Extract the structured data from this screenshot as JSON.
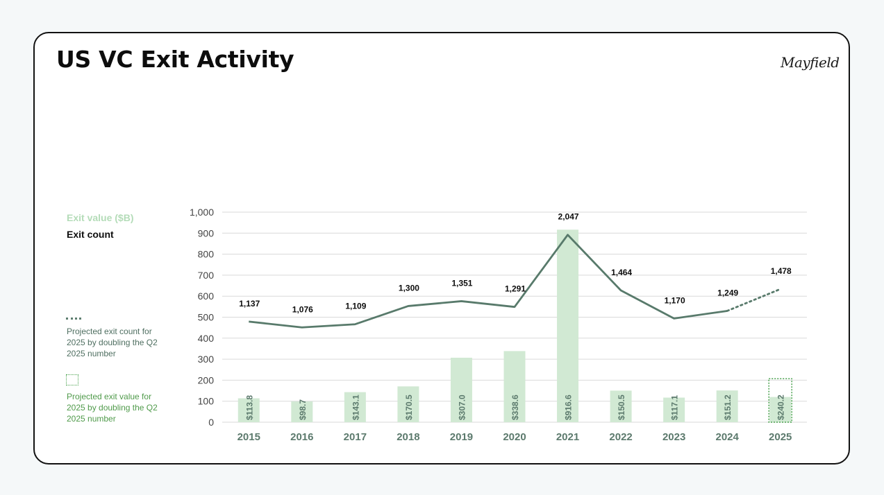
{
  "page": {
    "title": "US VC Exit Activity",
    "logo_text": "Mayfield"
  },
  "legend": {
    "value_label": "Exit value ($B)",
    "count_label": "Exit count",
    "projected_count_note": "Projected exit count for 2025 by doubling the Q2 2025 number",
    "projected_value_note": "Projected exit value for 2025 by doubling the Q2 2025 number"
  },
  "colors": {
    "bar": "#d1e9d3",
    "bar_label": "#5c7a6d",
    "line": "#587a6b",
    "count_label": "#0d0d0d",
    "axis_text": "#444444",
    "year_text": "#5c7a6d",
    "grid": "#d9d9d9",
    "projected_box": "#4aa24e"
  },
  "chart_data": {
    "type": "bar",
    "categories": [
      "2015",
      "2016",
      "2017",
      "2018",
      "2019",
      "2020",
      "2021",
      "2022",
      "2023",
      "2024",
      "2025"
    ],
    "ylim": [
      0,
      1000
    ],
    "yticks": [
      0,
      100,
      200,
      300,
      400,
      500,
      600,
      700,
      800,
      900,
      1000
    ],
    "ytick_labels": [
      "0",
      "100",
      "200",
      "300",
      "400",
      "500",
      "600",
      "700",
      "800",
      "900",
      "1,000"
    ],
    "grid": true,
    "legend_placement": "left",
    "series": [
      {
        "name": "Exit value ($B)",
        "type": "bar",
        "values": [
          113.8,
          98.7,
          143.1,
          170.5,
          307.0,
          338.6,
          916.6,
          150.5,
          117.1,
          151.2,
          120.1
        ],
        "labels": [
          "$113.8",
          "$98.7",
          "$143.1",
          "$170.5",
          "$307.0",
          "$338.6",
          "$916.6",
          "$150.5",
          "$117.1",
          "$151.2",
          "$240.2"
        ],
        "projected_values": [
          null,
          null,
          null,
          null,
          null,
          null,
          null,
          null,
          null,
          null,
          240.2
        ]
      },
      {
        "name": "Exit count",
        "type": "line",
        "values": [
          1137,
          1076,
          1109,
          1300,
          1351,
          1291,
          2047,
          1464,
          1170,
          1249,
          1478
        ],
        "labels": [
          "1,137",
          "1,076",
          "1,109",
          "1,300",
          "1,351",
          "1,291",
          "2,047",
          "1,464",
          "1,170",
          "1,249",
          "1,478"
        ],
        "projected_from_index": 9
      }
    ]
  }
}
